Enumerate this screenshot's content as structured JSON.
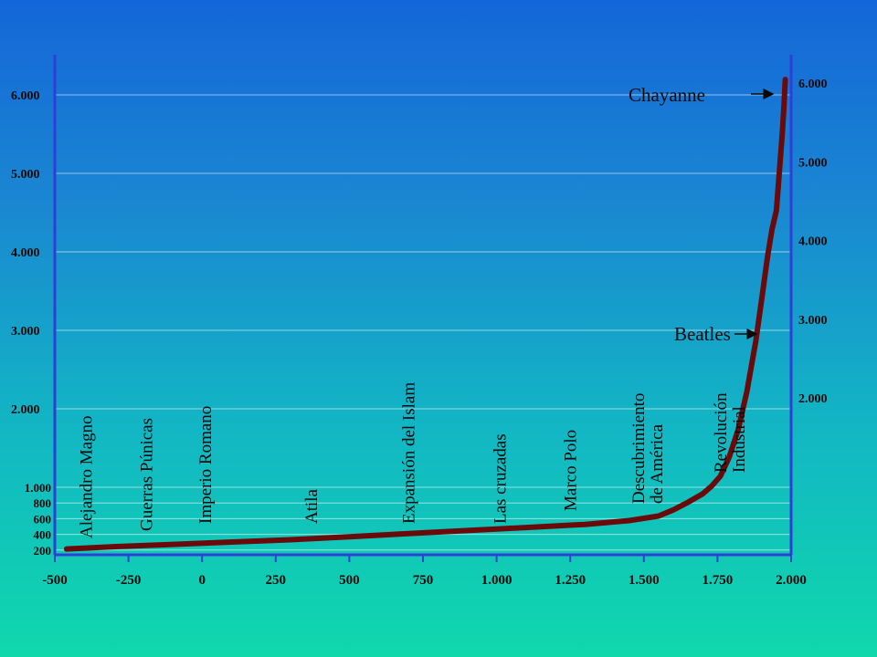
{
  "chart_data": {
    "type": "line",
    "title": "",
    "xlabel": "",
    "ylabel": "",
    "xlim": [
      -500,
      2000
    ],
    "ylim": [
      0,
      6000
    ],
    "x_ticks": [
      "-500",
      "-250",
      "0",
      "250",
      "500",
      "750",
      "1.000",
      "1.250",
      "1.500",
      "1.750",
      "2.000"
    ],
    "x_tick_values": [
      -500,
      -250,
      0,
      250,
      500,
      750,
      1000,
      1250,
      1500,
      1750,
      2000
    ],
    "y_ticks_left": [
      "200",
      "400",
      "600",
      "800",
      "1.000",
      "2.000",
      "3.000",
      "4.000",
      "5.000",
      "6.000"
    ],
    "y_tick_values_left": [
      200,
      400,
      600,
      800,
      1000,
      2000,
      3000,
      4000,
      5000,
      6000
    ],
    "y_ticks_right": [
      "2.000",
      "3.000",
      "4.000",
      "5.000",
      "6.000"
    ],
    "y_tick_values_right": [
      2000,
      3000,
      4000,
      5000,
      6000
    ],
    "grid": true,
    "series": [
      {
        "color": "#6b0a0a",
        "x": [
          -460,
          -300,
          -100,
          100,
          300,
          500,
          700,
          900,
          1100,
          1300,
          1450,
          1550,
          1600,
          1650,
          1700,
          1730,
          1760,
          1790,
          1820,
          1850,
          1880,
          1900,
          1920,
          1935,
          1950,
          1960,
          1970,
          1975,
          1980
        ],
        "y": [
          100,
          130,
          160,
          190,
          220,
          260,
          300,
          340,
          380,
          420,
          470,
          530,
          610,
          710,
          820,
          920,
          1050,
          1300,
          1650,
          2150,
          2800,
          3350,
          3900,
          4250,
          4500,
          5000,
          5500,
          5800,
          6200
        ]
      }
    ],
    "events": [
      {
        "label": "Alejandro Magno",
        "x": -375
      },
      {
        "label": "Guerras Púnicas",
        "x": -170
      },
      {
        "label": "Imperio Romano",
        "x": 30
      },
      {
        "label": "Atila",
        "x": 390
      },
      {
        "label": "Expansión del Islam",
        "x": 720
      },
      {
        "label": "Las cruzadas",
        "x": 1030
      },
      {
        "label": "Marco Polo",
        "x": 1270
      },
      {
        "label": "Descubrimiento",
        "label2": "de América",
        "x": 1500
      },
      {
        "label": "Revolución",
        "label2": "Industrial",
        "x": 1780
      }
    ],
    "annotations": [
      {
        "label": "Beatles",
        "x": 1960,
        "y": 2950
      },
      {
        "label": "Chayanne",
        "x": 1990,
        "y": 6000
      }
    ]
  }
}
